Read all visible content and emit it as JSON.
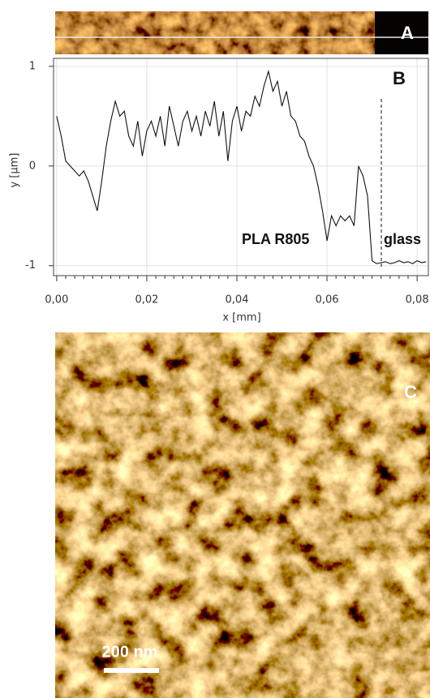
{
  "panel_labels": [
    "A",
    "B",
    "C"
  ],
  "scale_bar": "200 nm",
  "chart_data": {
    "type": "line",
    "xlabel": "x [mm]",
    "ylabel": "y [µm]",
    "annotations": [
      "PLA R805",
      "glass"
    ],
    "xlim": [
      -0.0007,
      0.0825
    ],
    "ylim": [
      -1.1,
      1.08
    ],
    "xticks": [
      {
        "value": 0,
        "label": "0,00"
      },
      {
        "value": 0.02,
        "label": "0,02"
      },
      {
        "value": 0.04,
        "label": "0,04"
      },
      {
        "value": 0.06,
        "label": "0,06"
      },
      {
        "value": 0.08,
        "label": "0,08"
      }
    ],
    "yticks": [
      -1,
      0,
      1
    ],
    "grid": true,
    "x": [
      0,
      0.001,
      0.002,
      0.003,
      0.004,
      0.005,
      0.006,
      0.007,
      0.008,
      0.009,
      0.01,
      0.011,
      0.012,
      0.013,
      0.014,
      0.015,
      0.016,
      0.017,
      0.018,
      0.019,
      0.02,
      0.021,
      0.022,
      0.023,
      0.024,
      0.025,
      0.026,
      0.027,
      0.028,
      0.029,
      0.03,
      0.031,
      0.032,
      0.033,
      0.034,
      0.035,
      0.036,
      0.037,
      0.038,
      0.039,
      0.04,
      0.041,
      0.042,
      0.043,
      0.044,
      0.045,
      0.046,
      0.047,
      0.048,
      0.049,
      0.05,
      0.051,
      0.052,
      0.053,
      0.054,
      0.055,
      0.056,
      0.057,
      0.058,
      0.059,
      0.06,
      0.061,
      0.062,
      0.063,
      0.064,
      0.065,
      0.066,
      0.067,
      0.068,
      0.069,
      0.07,
      0.071,
      0.072,
      0.073,
      0.074,
      0.075,
      0.076,
      0.077,
      0.078,
      0.079,
      0.08,
      0.081,
      0.082
    ],
    "series": [
      {
        "color": "#111111",
        "values": [
          0.5,
          0.3,
          0.05,
          0.0,
          -0.05,
          -0.1,
          -0.05,
          -0.15,
          -0.3,
          -0.45,
          -0.15,
          0.2,
          0.45,
          0.65,
          0.5,
          0.55,
          0.3,
          0.2,
          0.45,
          0.1,
          0.35,
          0.45,
          0.3,
          0.5,
          0.2,
          0.6,
          0.4,
          0.2,
          0.45,
          0.55,
          0.35,
          0.5,
          0.3,
          0.55,
          0.4,
          0.65,
          0.3,
          0.55,
          0.05,
          0.45,
          0.6,
          0.35,
          0.55,
          0.5,
          0.7,
          0.6,
          0.8,
          0.95,
          0.75,
          0.85,
          0.6,
          0.75,
          0.5,
          0.45,
          0.3,
          0.25,
          0.1,
          0.0,
          -0.2,
          -0.45,
          -0.75,
          -0.5,
          -0.6,
          -0.5,
          -0.55,
          -0.5,
          -0.6,
          0.0,
          -0.1,
          -0.3,
          -0.95,
          -0.98,
          -0.97,
          -0.96,
          -0.98,
          -0.97,
          -0.95,
          -0.97,
          -0.96,
          -0.98,
          -0.95,
          -0.97,
          -0.96
        ]
      }
    ]
  }
}
